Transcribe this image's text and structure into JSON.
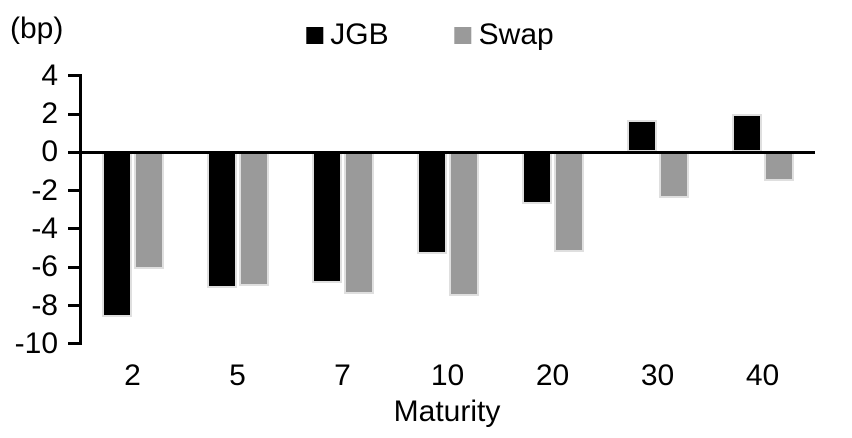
{
  "chart_data": {
    "type": "bar",
    "title": "",
    "unit_label": "(bp)",
    "xlabel": "Maturity",
    "categories": [
      "2",
      "5",
      "7",
      "10",
      "20",
      "30",
      "40"
    ],
    "series": [
      {
        "name": "JGB",
        "color": "#000000",
        "values": [
          -8.6,
          -7.1,
          -6.8,
          -5.3,
          -2.7,
          1.7,
          2.0
        ]
      },
      {
        "name": "Swap",
        "color": "#9a9a9a",
        "values": [
          -6.1,
          -7.0,
          -7.4,
          -7.5,
          -5.2,
          -2.4,
          -1.5
        ]
      }
    ],
    "ylim": [
      -10,
      4
    ],
    "yticks": [
      4,
      2,
      0,
      -2,
      -4,
      -6,
      -8,
      -10
    ],
    "ytick_step": 2,
    "grid": false,
    "legend_position": "top-center",
    "axis_color": "#000000",
    "background_color": "#ffffff",
    "bar_border_color": "#dfdfdf"
  }
}
